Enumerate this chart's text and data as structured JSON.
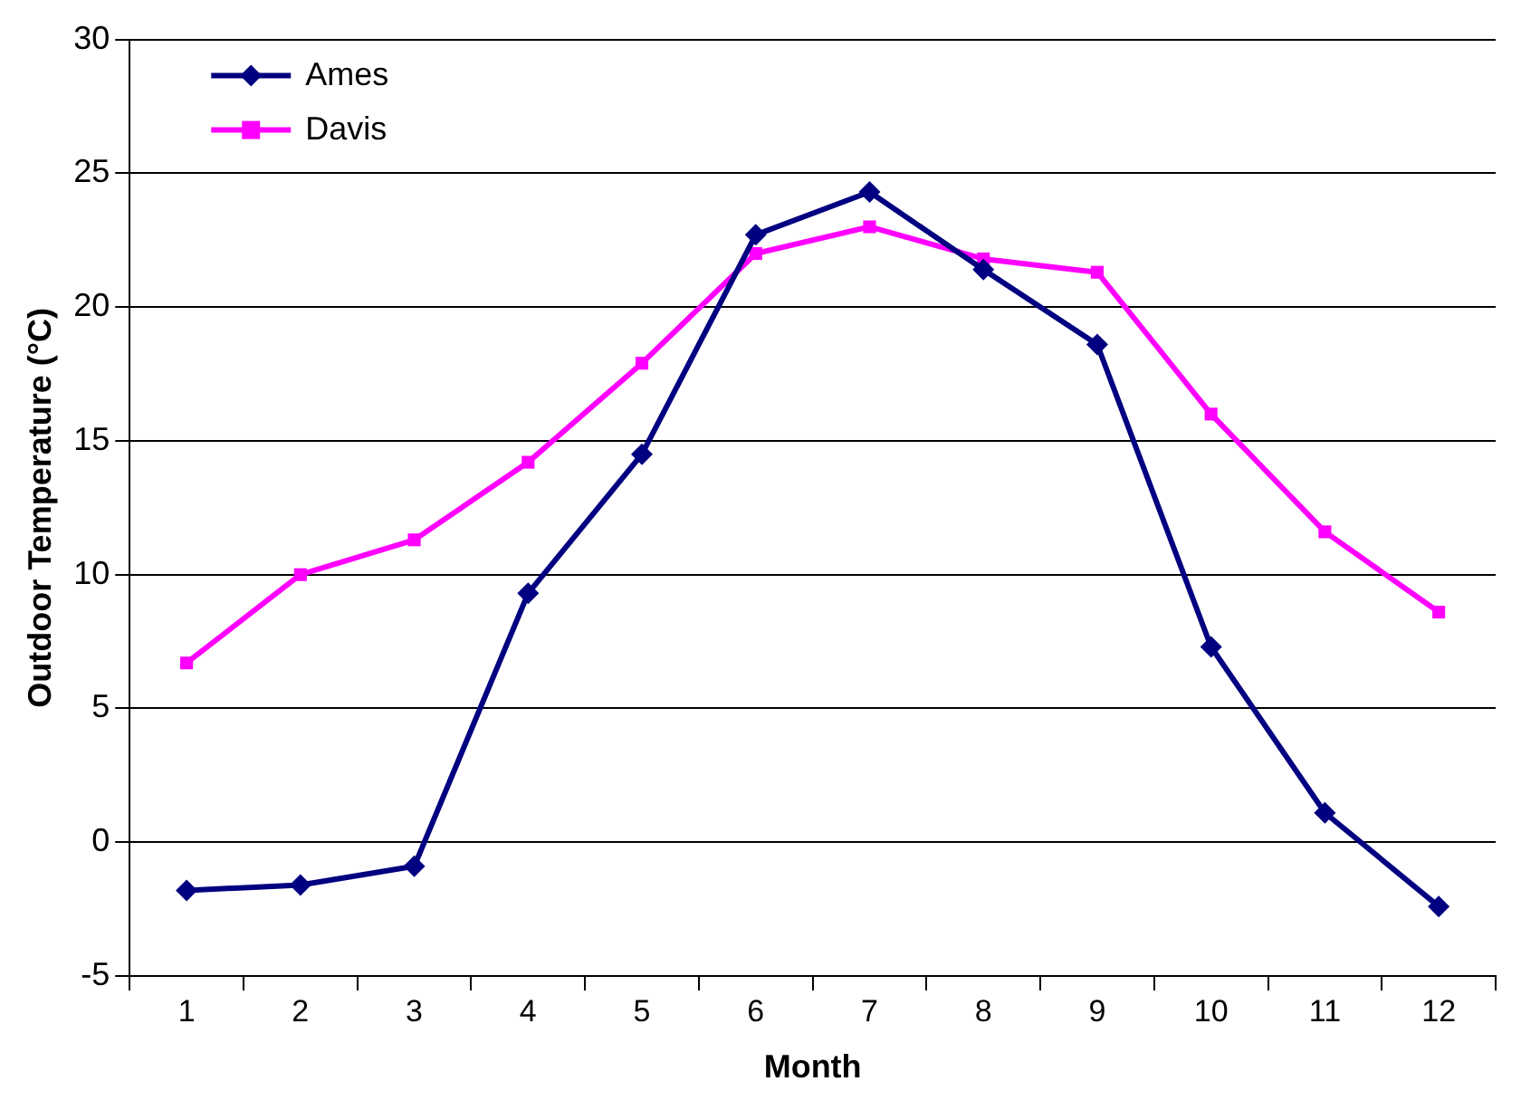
{
  "chart_data": {
    "type": "line",
    "xlabel": "Month",
    "ylabel": "Outdoor Temperature (°C)",
    "categories": [
      "1",
      "2",
      "3",
      "4",
      "5",
      "6",
      "7",
      "8",
      "9",
      "10",
      "11",
      "12"
    ],
    "series": [
      {
        "name": "Ames",
        "color": "#000080",
        "marker": "diamond",
        "values": [
          -1.8,
          -1.6,
          -0.9,
          9.3,
          14.5,
          22.7,
          24.3,
          21.4,
          18.6,
          7.3,
          1.1,
          -2.4
        ]
      },
      {
        "name": "Davis",
        "color": "#ff00ff",
        "marker": "square",
        "values": [
          6.7,
          10.0,
          11.3,
          14.2,
          17.9,
          22.0,
          23.0,
          21.8,
          21.3,
          16.0,
          11.6,
          8.6
        ]
      }
    ],
    "ylim": [
      -5,
      30
    ],
    "yticks": [
      -5,
      0,
      5,
      10,
      15,
      20,
      25,
      30
    ],
    "grid": "y",
    "legend": "top left",
    "line_style": "solid"
  }
}
